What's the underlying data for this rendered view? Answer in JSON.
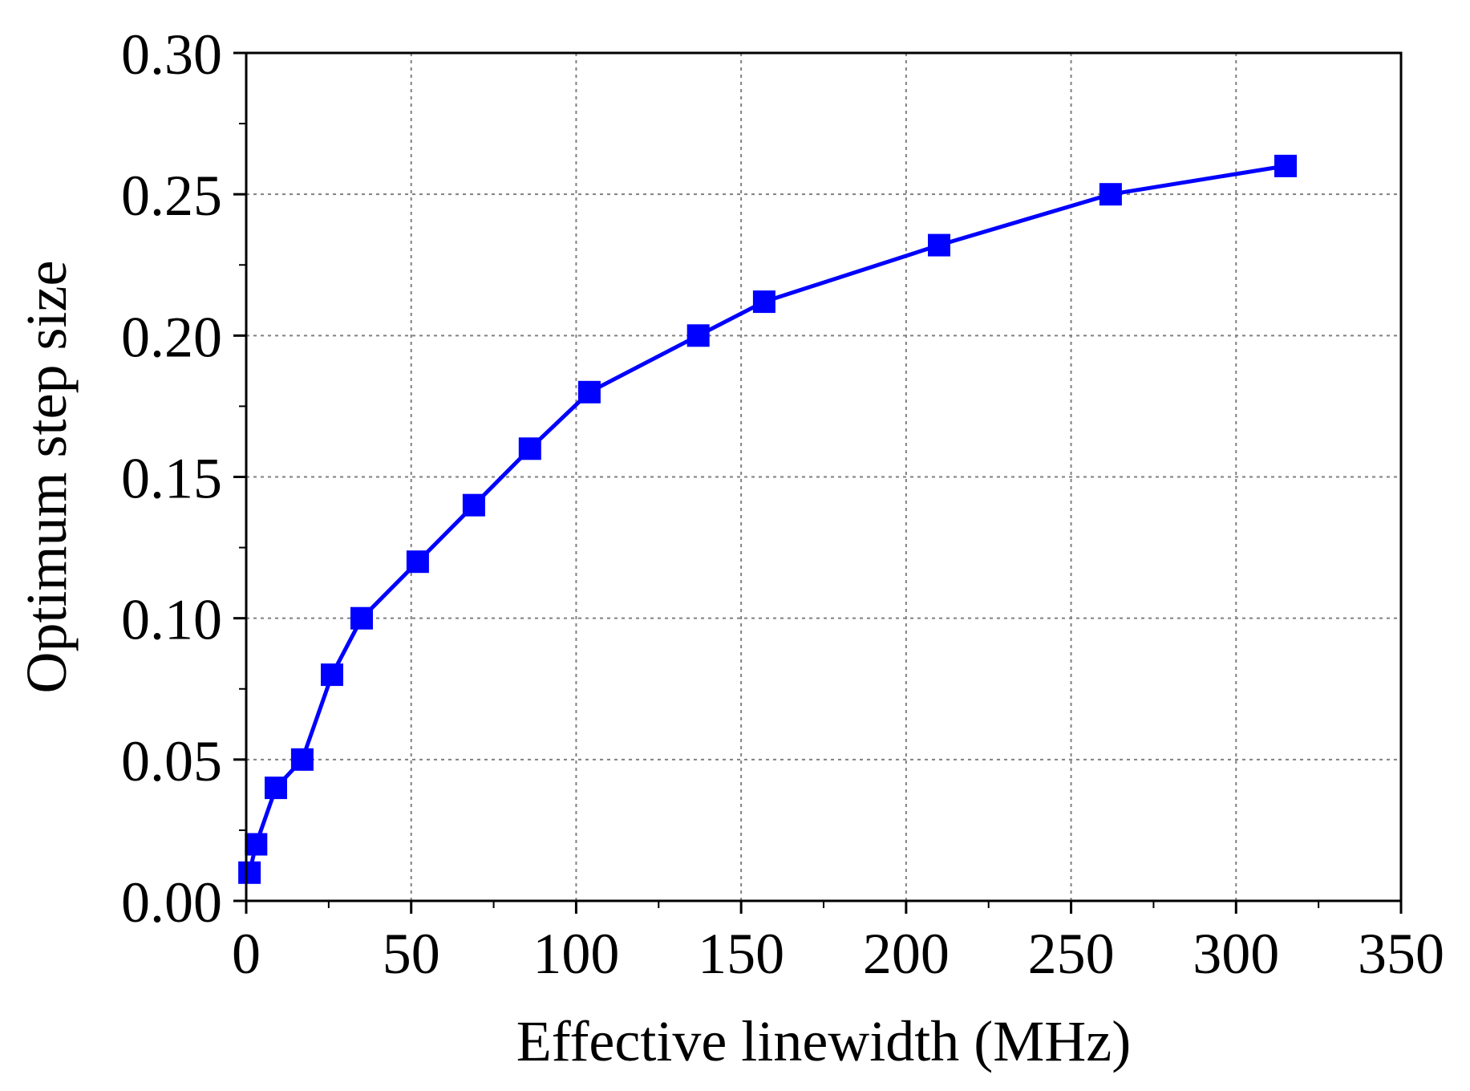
{
  "chart_data": {
    "type": "line",
    "title": "",
    "xlabel": "Effective linewidth (MHz)",
    "ylabel": "Optimum step size",
    "xlim": [
      0,
      350
    ],
    "ylim": [
      0,
      0.3
    ],
    "xticks": [
      0,
      50,
      100,
      150,
      200,
      250,
      300,
      350
    ],
    "xtick_labels": [
      "0",
      "50",
      "100",
      "150",
      "200",
      "250",
      "300",
      "350"
    ],
    "yticks": [
      0,
      0.05,
      0.1,
      0.15,
      0.2,
      0.25,
      0.3
    ],
    "ytick_labels": [
      "0.00",
      "0.05",
      "0.10",
      "0.15",
      "0.20",
      "0.25",
      "0.30"
    ],
    "grid": true,
    "series": [
      {
        "name": "Optimum step size",
        "color": "#0000ff",
        "marker": "square",
        "x": [
          1,
          3,
          9,
          17,
          26,
          35,
          52,
          69,
          86,
          104,
          137,
          157,
          210,
          262,
          315
        ],
        "y": [
          0.01,
          0.02,
          0.04,
          0.05,
          0.08,
          0.1,
          0.12,
          0.14,
          0.16,
          0.18,
          0.2,
          0.212,
          0.232,
          0.25,
          0.26
        ]
      }
    ]
  }
}
